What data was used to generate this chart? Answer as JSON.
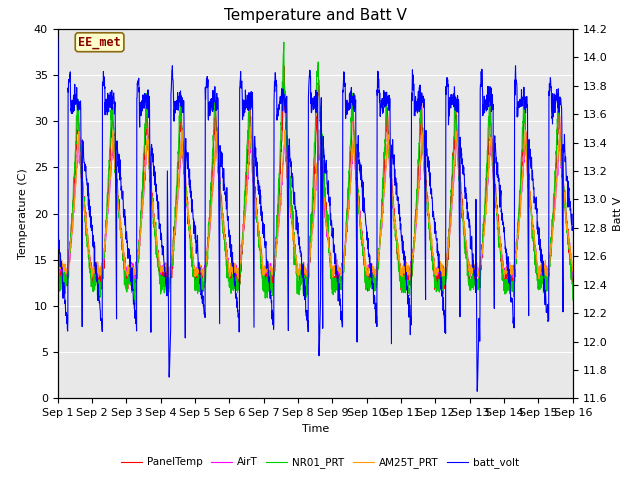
{
  "title": "Temperature and Batt V",
  "xlabel": "Time",
  "ylabel_left": "Temperature (C)",
  "ylabel_right": "Batt V",
  "xlim": [
    0,
    15
  ],
  "ylim_left": [
    0,
    40
  ],
  "ylim_right": [
    11.6,
    14.2
  ],
  "xtick_labels": [
    "Sep 1",
    "Sep 2",
    "Sep 3",
    "Sep 4",
    "Sep 5",
    "Sep 6",
    "Sep 7",
    "Sep 8",
    "Sep 9",
    "Sep 10",
    "Sep 11",
    "Sep 12",
    "Sep 13",
    "Sep 14",
    "Sep 15",
    "Sep 16"
  ],
  "yticks_left": [
    0,
    5,
    10,
    15,
    20,
    25,
    30,
    35,
    40
  ],
  "yticks_right": [
    11.6,
    11.8,
    12.0,
    12.2,
    12.4,
    12.6,
    12.8,
    13.0,
    13.2,
    13.4,
    13.6,
    13.8,
    14.0,
    14.2
  ],
  "annotation_text": "EE_met",
  "legend_entries": [
    "PanelTemp",
    "AirT",
    "NR01_PRT",
    "AM25T_PRT",
    "batt_volt"
  ],
  "legend_colors": [
    "#ff0000",
    "#ff00ff",
    "#00cc00",
    "#ff9900",
    "#0000ff"
  ],
  "background_color": "#e8e8e8",
  "grid_color": "#ffffff",
  "title_fontsize": 11,
  "axis_fontsize": 8,
  "tick_fontsize": 8,
  "linewidth": 0.8
}
